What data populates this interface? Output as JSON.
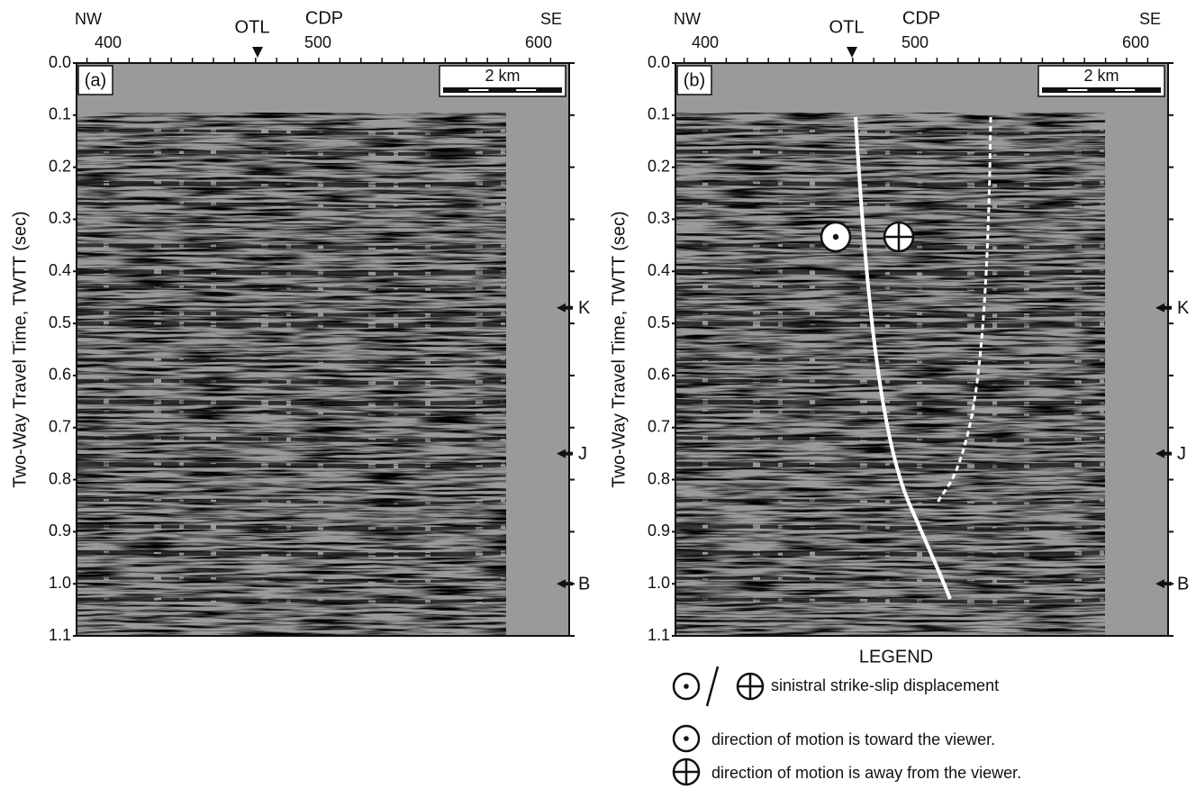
{
  "panels": [
    {
      "label": "(a)",
      "dir_left": "NW",
      "dir_right": "SE",
      "otl": "OTL",
      "cdp": "CDP",
      "cdp_ticks": [
        "400",
        "500",
        "600"
      ],
      "scale": "2 km",
      "y_axis_label": "Two-Way Travel Time, TWTT (sec)",
      "y_ticks": [
        "0.0",
        "0.1",
        "0.2",
        "0.3",
        "0.4",
        "0.5",
        "0.6",
        "0.7",
        "0.8",
        "0.9",
        "1.0",
        "1.1"
      ],
      "horizons": [
        "K",
        "J",
        "B"
      ]
    },
    {
      "label": "(b)",
      "dir_left": "NW",
      "dir_right": "SE",
      "otl": "OTL",
      "cdp": "CDP",
      "cdp_ticks": [
        "400",
        "500",
        "600"
      ],
      "scale": "2 km",
      "y_axis_label": "Two-Way Travel Time, TWTT (sec)",
      "y_ticks": [
        "0.0",
        "0.1",
        "0.2",
        "0.3",
        "0.4",
        "0.5",
        "0.6",
        "0.7",
        "0.8",
        "0.9",
        "1.0",
        "1.1"
      ],
      "horizons": [
        "K",
        "J",
        "B"
      ]
    }
  ],
  "legend": {
    "title": "LEGEND",
    "items": [
      "sinistral strike-slip displacement",
      "direction of motion is toward the viewer.",
      "direction of motion is away from the viewer."
    ]
  }
}
